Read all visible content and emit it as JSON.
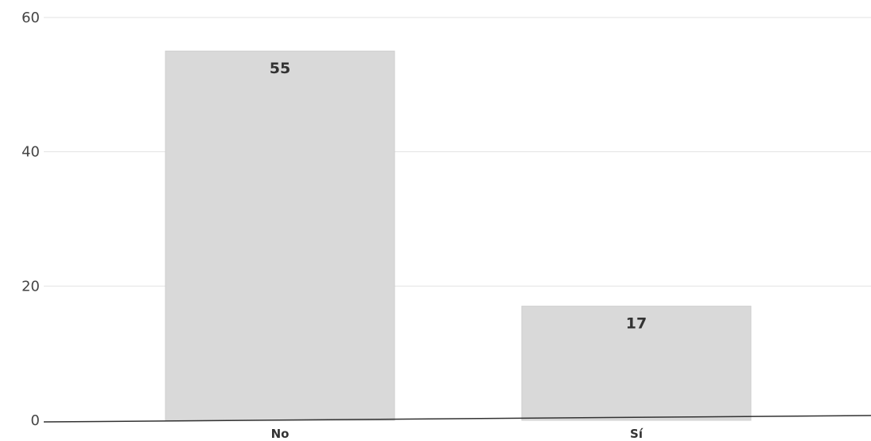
{
  "chart_data": {
    "type": "bar",
    "categories": [
      "No",
      "Sí"
    ],
    "values": [
      55,
      17
    ],
    "data_labels": [
      "55",
      "17"
    ],
    "title": "",
    "xlabel": "",
    "ylabel": "",
    "ylim": [
      0,
      60
    ],
    "yticks": [
      0,
      20,
      40,
      60
    ],
    "ytick_labels": [
      "0",
      "20",
      "40",
      "60"
    ],
    "grid": true,
    "bar_color": "#d9d9d9",
    "bar_edge_color": "#cfcfcf"
  }
}
